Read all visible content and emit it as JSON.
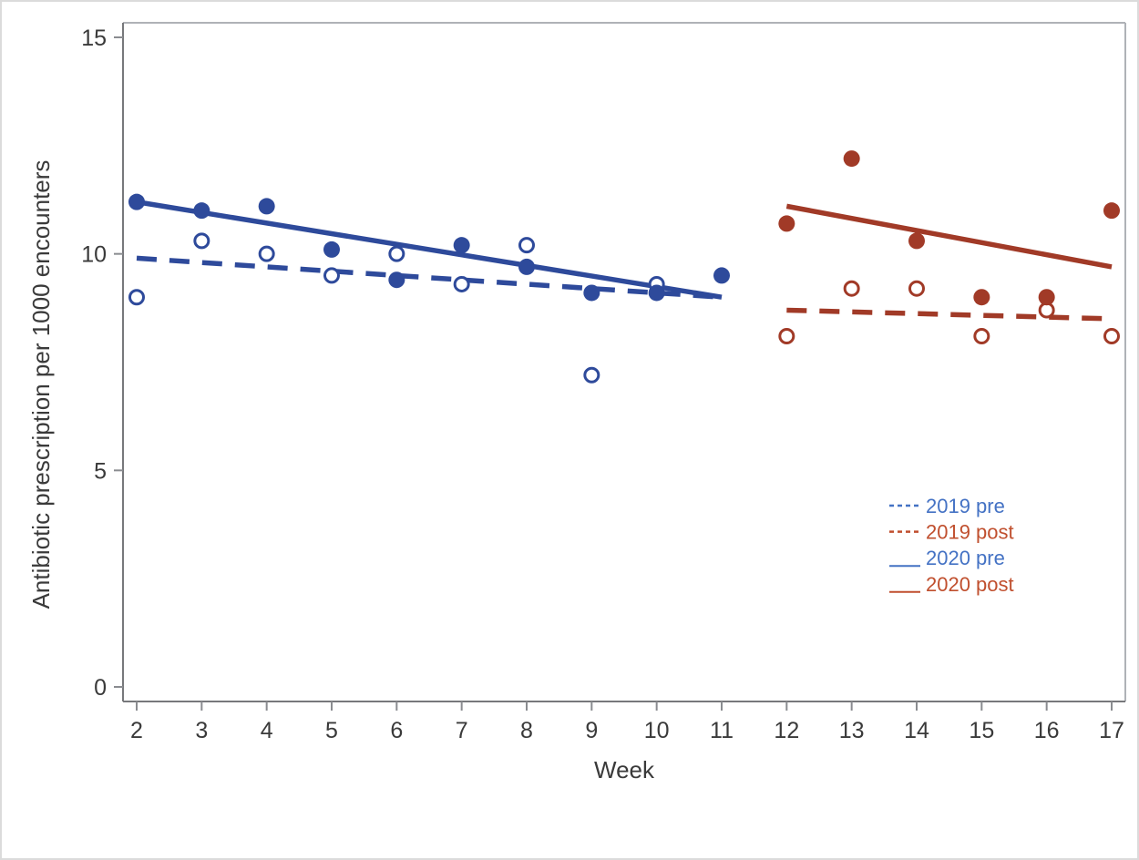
{
  "figure": {
    "background": "#ffffff",
    "border_color": "#dbdbdb"
  },
  "chart_data": {
    "type": "scatter",
    "title": "",
    "xlabel": "Week",
    "ylabel": "Antibiotic prescription per 1000 encounters",
    "xlim": [
      1.8,
      17.2
    ],
    "ylim": [
      0,
      15.3
    ],
    "x_ticks": [
      2,
      3,
      4,
      5,
      6,
      7,
      8,
      9,
      10,
      11,
      12,
      13,
      14,
      15,
      16,
      17
    ],
    "y_ticks": [
      0,
      5,
      10,
      15
    ],
    "grid": false,
    "legend_position": "inside-right-lower",
    "colors": {
      "pre_blue": "#2E4A9B",
      "post_red": "#A13A27",
      "legend_blue": "#4472C4",
      "legend_red": "#C04F2E",
      "axis_dark": "#77787B",
      "axis_light": "#AFB2B7",
      "tick_color": "#8A8C90",
      "tick_text": "#3A3A3A"
    },
    "series": [
      {
        "name": "2019 pre",
        "marker": "open-circle",
        "color": "#2E4A9B",
        "x": [
          2,
          3,
          4,
          5,
          6,
          7,
          8,
          9,
          10
        ],
        "y": [
          9.0,
          10.3,
          10.0,
          9.5,
          10.0,
          9.3,
          10.2,
          7.2,
          9.3
        ]
      },
      {
        "name": "2020 pre",
        "marker": "filled-circle",
        "color": "#2E4A9B",
        "x": [
          2,
          3,
          4,
          5,
          6,
          7,
          8,
          9,
          10,
          11
        ],
        "y": [
          11.2,
          11.0,
          11.1,
          10.1,
          9.4,
          10.2,
          9.7,
          9.1,
          9.1,
          9.5
        ]
      },
      {
        "name": "2019 post",
        "marker": "open-circle",
        "color": "#A13A27",
        "x": [
          12,
          13,
          14,
          15,
          16,
          17
        ],
        "y": [
          8.1,
          9.2,
          9.2,
          8.1,
          8.7,
          8.1
        ]
      },
      {
        "name": "2020 post",
        "marker": "filled-circle",
        "color": "#A13A27",
        "x": [
          12,
          13,
          14,
          15,
          16,
          17
        ],
        "y": [
          10.7,
          12.2,
          10.3,
          9.0,
          9.0,
          11.0
        ]
      }
    ],
    "trendlines": [
      {
        "name": "2019 pre",
        "style": "dashed",
        "color": "#2E4A9B",
        "x1": 2,
        "y1": 9.9,
        "x2": 11,
        "y2": 9.0
      },
      {
        "name": "2020 pre",
        "style": "solid",
        "color": "#2E4A9B",
        "x1": 2,
        "y1": 11.2,
        "x2": 11,
        "y2": 9.0
      },
      {
        "name": "2019 post",
        "style": "dashed",
        "color": "#A13A27",
        "x1": 12,
        "y1": 8.7,
        "x2": 17,
        "y2": 8.5
      },
      {
        "name": "2020 post",
        "style": "solid",
        "color": "#A13A27",
        "x1": 12,
        "y1": 11.1,
        "x2": 17,
        "y2": 9.7
      }
    ],
    "legend": [
      {
        "label": "2019 pre",
        "style": "dashed",
        "color": "#4472C4"
      },
      {
        "label": "2019 post",
        "style": "dashed",
        "color": "#C04F2E"
      },
      {
        "label": "2020 pre",
        "style": "solid",
        "color": "#4472C4"
      },
      {
        "label": "2020 post",
        "style": "solid",
        "color": "#C04F2E"
      }
    ]
  }
}
